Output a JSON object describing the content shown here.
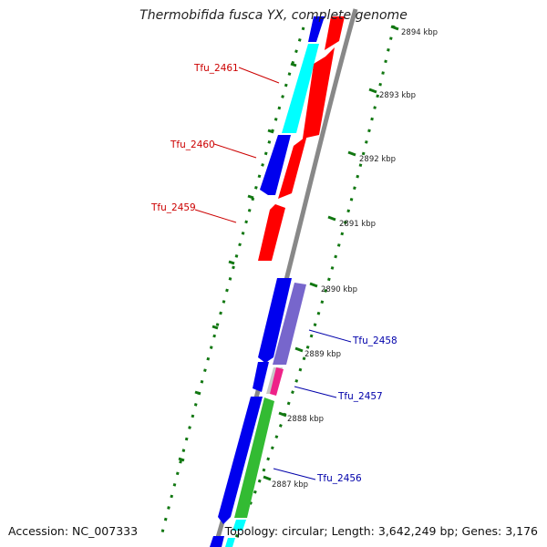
{
  "title": "Thermobifida fusca YX, complete genome",
  "footer": {
    "accession": "Accession: NC_007333",
    "info": "Topology: circular; Length: 3,642,249 bp; Genes: 3,176"
  },
  "ruler_ticks": [
    "2894 kbp",
    "2893 kbp",
    "2892 kbp",
    "2891 kbp",
    "2890 kbp",
    "2889 kbp",
    "2888 kbp",
    "2887 kbp"
  ],
  "gene_labels_forward": [
    "Tfu_2461",
    "Tfu_2460",
    "Tfu_2459"
  ],
  "gene_labels_reverse": [
    "Tfu_2458",
    "Tfu_2457",
    "Tfu_2456"
  ],
  "colors": {
    "blue": "#0000ee",
    "red": "#ff0000",
    "cyan": "#00ffff",
    "purple": "#7766cc",
    "gray": "#c8c8c8",
    "magenta": "#ee2288",
    "green": "#33bb33",
    "dot_green": "#117711",
    "forward_label": "#cc0000",
    "reverse_label": "#0000aa",
    "backbone": "#888888"
  }
}
